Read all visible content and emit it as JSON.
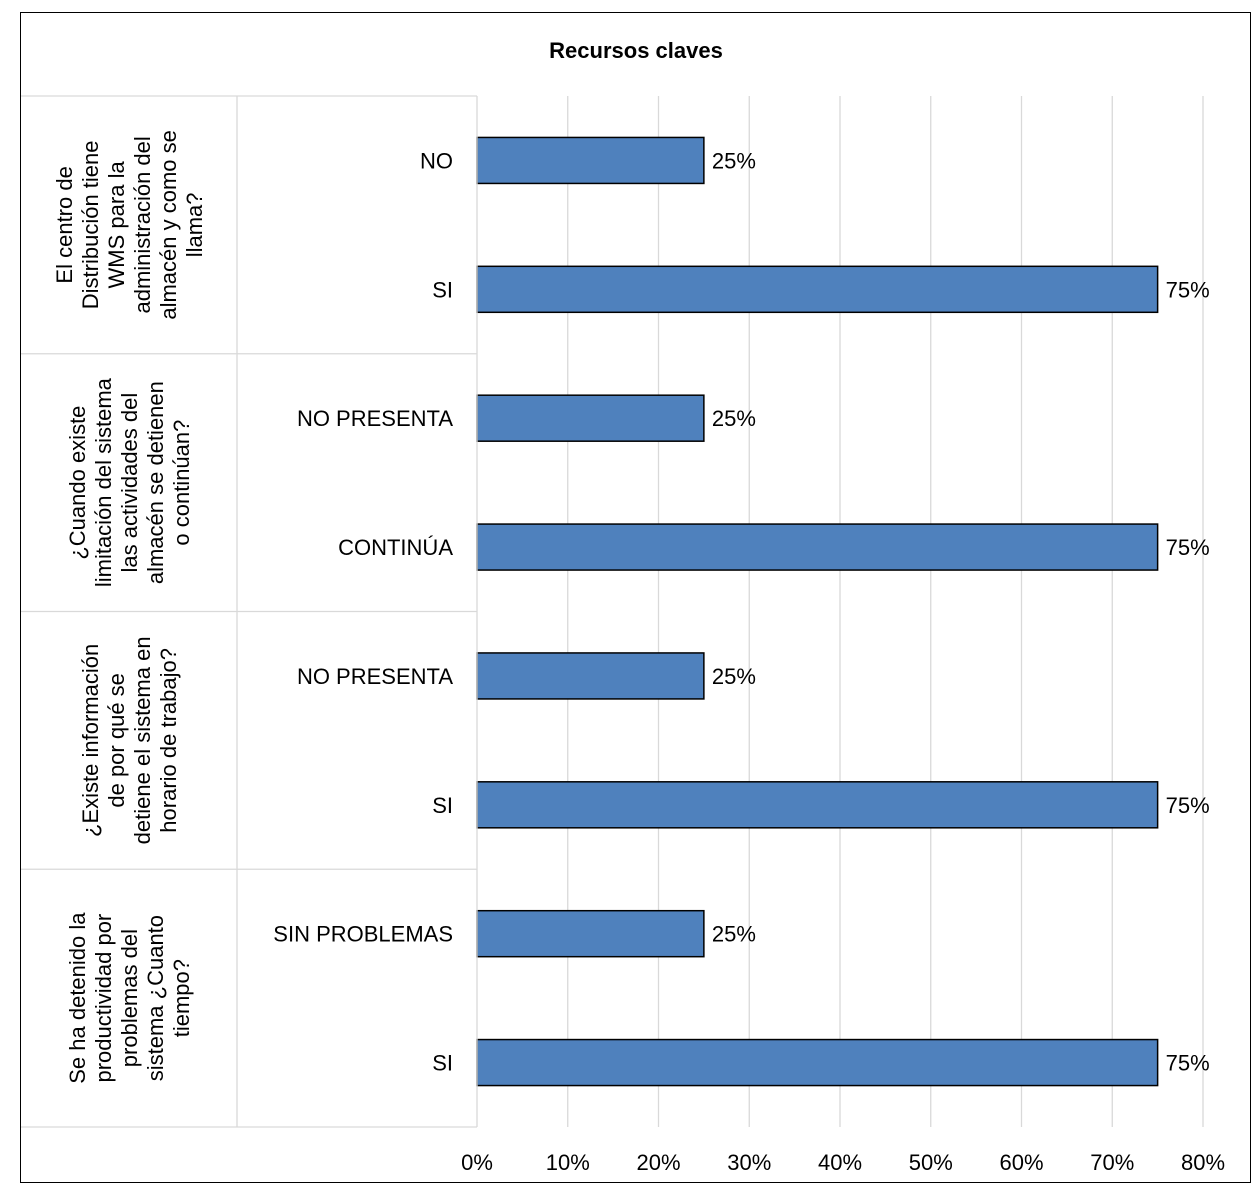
{
  "chart_data": {
    "type": "bar",
    "orientation": "horizontal",
    "title": "Recursos claves",
    "xlim": [
      0,
      80
    ],
    "x_ticks": [
      0,
      10,
      20,
      30,
      40,
      50,
      60,
      70,
      80
    ],
    "tick_format": "percent",
    "grid": true,
    "bar_color": "#4f81bd",
    "bar_border": "#000000",
    "groups": [
      {
        "label": "El centro de Distribución tiene WMS para la administración del almacén y como se llama?",
        "label_lines": [
          "El centro de",
          "Distribución tiene",
          "WMS para la",
          "administración del",
          "almacén y como se",
          "llama?"
        ],
        "categories": [
          "NO",
          "SI"
        ],
        "values": [
          25,
          75
        ]
      },
      {
        "label": "¿Cuando existe limitación del sistema las actividades del almacén se detienen o continúan?",
        "label_lines": [
          "¿Cuando existe",
          "limitación del sistema",
          "las actividades del",
          "almacén se detienen",
          "o continúan?"
        ],
        "categories": [
          "NO PRESENTA",
          "CONTINÚA"
        ],
        "values": [
          25,
          75
        ]
      },
      {
        "label": "¿Existe información de por qué se detiene el sistema en horario de trabajo?",
        "label_lines": [
          "¿Existe información",
          "de por qué se",
          "detiene el sistema en",
          "horario de trabajo?"
        ],
        "categories": [
          "NO PRESENTA",
          "SI"
        ],
        "values": [
          25,
          75
        ]
      },
      {
        "label": "Se ha detenido la productividad por problemas del sistema ¿Cuanto tiempo?",
        "label_lines": [
          "Se ha detenido la",
          "productividad por",
          "problemas del",
          "sistema ¿Cuanto",
          "tiempo?"
        ],
        "categories": [
          "SIN PROBLEMAS",
          "SI"
        ],
        "values": [
          25,
          75
        ]
      }
    ]
  }
}
